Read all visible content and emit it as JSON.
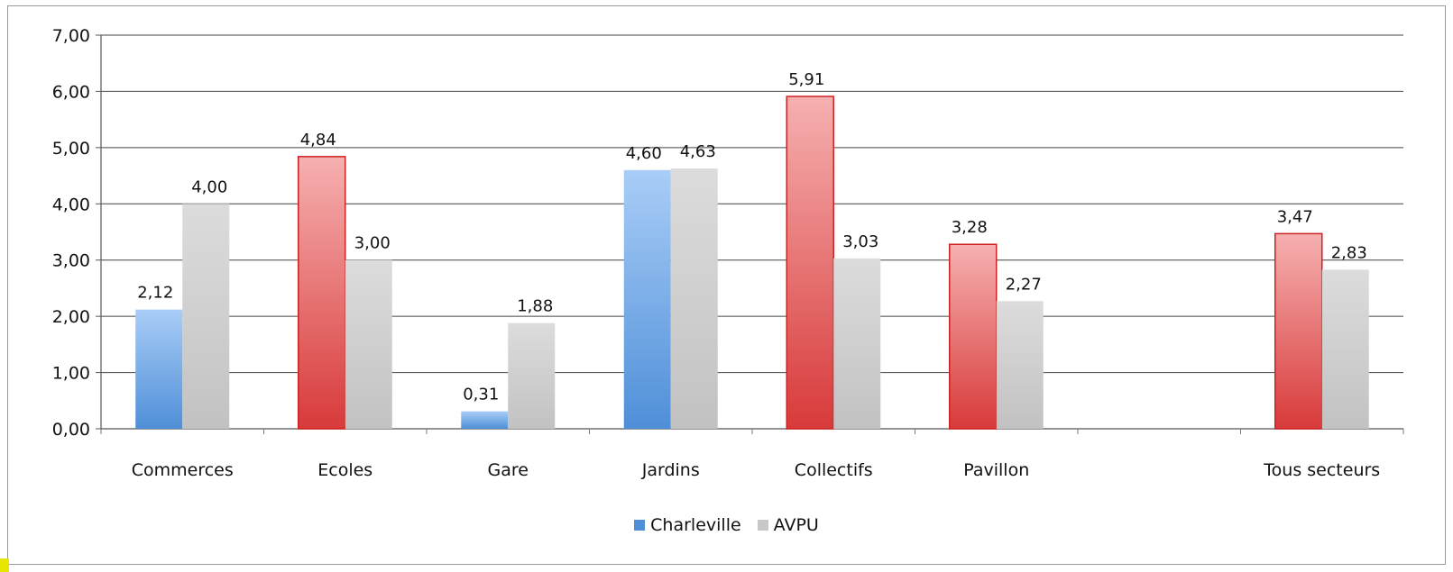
{
  "chart_data": {
    "type": "bar",
    "categories": [
      "Commerces",
      "Ecoles",
      "Gare",
      "Jardins",
      "Collectifs",
      "Pavillon",
      "",
      "Tous secteurs"
    ],
    "series": [
      {
        "name": "Charleville",
        "values": [
          2.12,
          4.84,
          0.31,
          4.6,
          5.91,
          3.28,
          null,
          3.47
        ],
        "labels": [
          "2,12",
          "4,84",
          "0,31",
          "4,60",
          "5,91",
          "3,28",
          "",
          "3,47"
        ],
        "point_colors": [
          "blue",
          "red",
          "blue",
          "blue",
          "red",
          "red",
          "",
          "red"
        ]
      },
      {
        "name": "AVPU",
        "values": [
          4.0,
          3.0,
          1.88,
          4.63,
          3.03,
          2.27,
          null,
          2.83
        ],
        "labels": [
          "4,00",
          "3,00",
          "1,88",
          "4,63",
          "3,03",
          "2,27",
          "",
          "2,83"
        ]
      }
    ],
    "ylim": [
      0,
      7
    ],
    "yticks": [
      "0,00",
      "1,00",
      "2,00",
      "3,00",
      "4,00",
      "5,00",
      "6,00",
      "7,00"
    ],
    "grid": true,
    "legend_position": "bottom",
    "colors": {
      "blue_top": "#a9cdf7",
      "blue_bottom": "#4f8fd8",
      "red_top": "#f6b0b0",
      "red_bottom": "#d83a3a",
      "grey_top": "#dcdcdc",
      "grey_bottom": "#c2c2c2"
    }
  },
  "legend": {
    "items": [
      {
        "label": "Charleville",
        "color": "#4f8fd8"
      },
      {
        "label": "AVPU",
        "color": "#c8c8c8"
      }
    ]
  }
}
